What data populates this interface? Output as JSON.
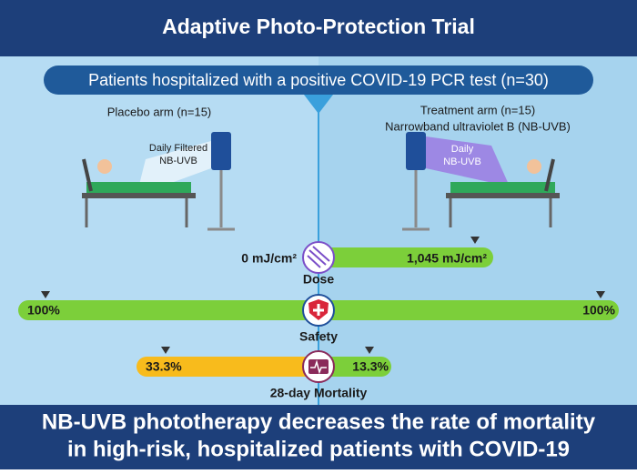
{
  "header": {
    "title": "Adaptive Photo-Protection Trial"
  },
  "population": "Patients hospitalized with a positive COVID-19 PCR test (n=30)",
  "placebo": {
    "label": "Placebo arm (n=15)",
    "lamp": [
      "Daily Filtered",
      "NB-UVB"
    ]
  },
  "treatment": {
    "label": [
      "Treatment arm (n=15)",
      "Narrowband ultraviolet B (NB-UVB)"
    ],
    "lamp": [
      "Daily",
      "NB-UVB"
    ]
  },
  "dose": {
    "placebo": "0 mJ/cm²",
    "treatment": "1,045 mJ/cm²",
    "label": "Dose"
  },
  "safety": {
    "placebo": "100%",
    "treatment": "100%",
    "label": "Safety"
  },
  "mortality": {
    "placebo": "33.3%",
    "treatment": "13.3%",
    "label": "28-day Mortality"
  },
  "conclusion": [
    "NB-UVB phototherapy decreases the rate of mortality",
    "in high-risk, hospitalized patients with COVID-19"
  ]
}
